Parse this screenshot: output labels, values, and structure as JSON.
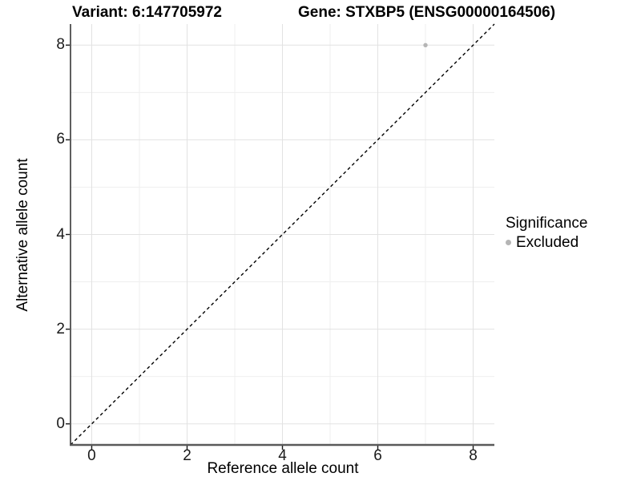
{
  "chart_data": {
    "type": "scatter",
    "titles": {
      "left": "Variant: 6:147705972",
      "right": "Gene: STXBP5 (ENSG00000164506)"
    },
    "xlabel": "Reference allele count",
    "ylabel": "Alternative allele count",
    "xlim": [
      -0.445,
      8.445
    ],
    "ylim": [
      -0.445,
      8.445
    ],
    "xticks": [
      0,
      2,
      4,
      6,
      8
    ],
    "yticks": [
      0,
      2,
      4,
      6,
      8
    ],
    "xminor": [
      1,
      3,
      5,
      7
    ],
    "yminor": [
      1,
      3,
      5,
      7
    ],
    "grid": "on",
    "series": [
      {
        "name": "Excluded",
        "color": "#b5b5b5",
        "points": [
          {
            "x": 7,
            "y": 8
          }
        ]
      }
    ],
    "reference_line": {
      "type": "identity",
      "equation": "y = x",
      "style": "dashed",
      "color": "#000000"
    },
    "legend": {
      "title": "Significance",
      "position": "right",
      "items": [
        {
          "label": "Excluded",
          "marker_color": "#b5b5b5"
        }
      ]
    }
  },
  "colors": {
    "background": "#ffffff",
    "grid_major": "#e2e2e2",
    "grid_minor": "#efefef",
    "axis_line_left": "#1a1a1a",
    "axis_line_bottom": "#5a5a5a",
    "tick": "#1a1a1a",
    "point": "#b5b5b5"
  }
}
